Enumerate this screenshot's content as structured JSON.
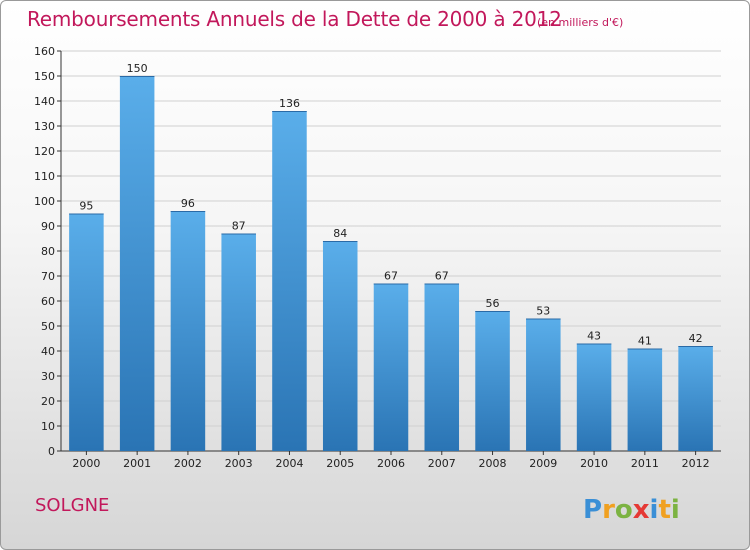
{
  "title": "Remboursements Annuels de la Dette de 2000 à 2012",
  "unit_note": "(en milliers d'€)",
  "commune": "SOLGNE",
  "logo_text": "Proxiti",
  "colors": {
    "title": "#c2185b",
    "bar_top": "#5aaeea",
    "bar_bottom": "#2a74b4",
    "grid": "#d0d0d0",
    "axis": "#333333"
  },
  "chart_data": {
    "type": "bar",
    "title": "Remboursements Annuels de la Dette de 2000 à 2012",
    "xlabel": "",
    "ylabel": "",
    "categories": [
      "2000",
      "2001",
      "2002",
      "2003",
      "2004",
      "2005",
      "2006",
      "2007",
      "2008",
      "2009",
      "2010",
      "2011",
      "2012"
    ],
    "values": [
      95,
      150,
      96,
      87,
      136,
      84,
      67,
      67,
      56,
      53,
      43,
      41,
      42
    ],
    "ylim": [
      0,
      160
    ],
    "yticks": [
      0,
      10,
      20,
      30,
      40,
      50,
      60,
      70,
      80,
      90,
      100,
      110,
      120,
      130,
      140,
      150,
      160
    ],
    "grid": true,
    "data_labels": true
  }
}
